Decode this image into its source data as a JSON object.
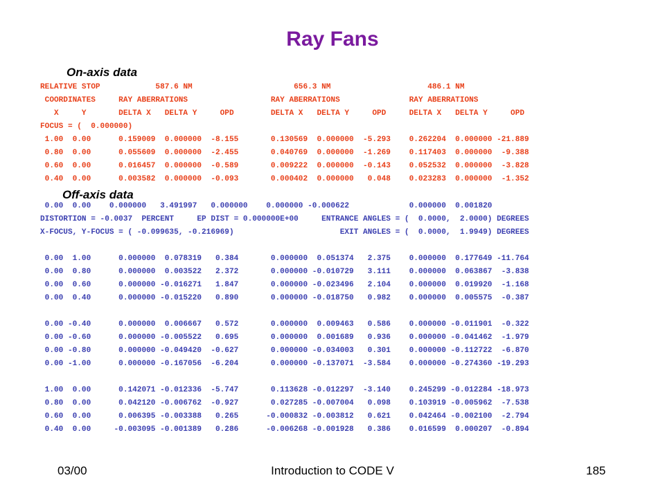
{
  "slide": {
    "title": "Ray Fans",
    "onaxis_heading": "On-axis data",
    "offaxis_heading": "Off-axis data",
    "onaxis_text": "RELATIVE STOP            587.6 NM                      656.3 NM                     486.1 NM\n COORDINATES     RAY ABERRATIONS                  RAY ABERRATIONS               RAY ABERRATIONS\n   X     Y       DELTA X   DELTA Y     OPD        DELTA X   DELTA Y     OPD     DELTA X   DELTA Y     OPD\nFOCUS = (  0.000000)\n 1.00  0.00      0.159009  0.000000  -8.155       0.130569  0.000000  -5.293    0.262204  0.000000 -21.889\n 0.80  0.00      0.055609  0.000000  -2.455       0.040769  0.000000  -1.269    0.117403  0.000000  -9.388\n 0.60  0.00      0.016457  0.000000  -0.589       0.009222  0.000000  -0.143    0.052532  0.000000  -3.828\n 0.40  0.00      0.003582  0.000000  -0.093       0.000402  0.000000   0.048    0.023283  0.000000  -1.352",
    "offaxis_text": " 0.00  0.00    0.000000   3.491997   0.000000    0.000000 -0.000622             0.000000  0.001820\nDISTORTION = -0.0037  PERCENT     EP DIST = 0.000000E+00     ENTRANCE ANGLES = (  0.0000,  2.0000) DEGREES\nX-FOCUS, Y-FOCUS = ( -0.099635, -0.216969)                       EXIT ANGLES = (  0.0000,  1.9949) DEGREES\n\n 0.00  1.00      0.000000  0.078319   0.384       0.000000  0.051374   2.375    0.000000  0.177649 -11.764\n 0.00  0.80      0.000000  0.003522   2.372       0.000000 -0.010729   3.111    0.000000  0.063867  -3.838\n 0.00  0.60      0.000000 -0.016271   1.847       0.000000 -0.023496   2.104    0.000000  0.019920  -1.168\n 0.00  0.40      0.000000 -0.015220   0.890       0.000000 -0.018750   0.982    0.000000  0.005575  -0.387\n\n 0.00 -0.40      0.000000  0.006667   0.572       0.000000  0.009463   0.586    0.000000 -0.011901  -0.322\n 0.00 -0.60      0.000000 -0.005522   0.695       0.000000  0.001689   0.936    0.000000 -0.041462  -1.979\n 0.00 -0.80      0.000000 -0.049420  -0.627       0.000000 -0.034003   0.301    0.000000 -0.112722  -6.870\n 0.00 -1.00      0.000000 -0.167056  -6.204       0.000000 -0.137071  -3.584    0.000000 -0.274360 -19.293\n\n 1.00  0.00      0.142071 -0.012336  -5.747       0.113628 -0.012297  -3.140    0.245299 -0.012284 -18.973\n 0.80  0.00      0.042120 -0.006762  -0.927       0.027285 -0.007004   0.098    0.103919 -0.005962  -7.538\n 0.60  0.00      0.006395 -0.003388   0.265      -0.000832 -0.003812   0.621    0.042464 -0.002100  -2.794\n 0.40  0.00     -0.003095 -0.001389   0.286      -0.006268 -0.001928   0.386    0.016599  0.000207  -0.894"
  },
  "footer": {
    "date": "03/00",
    "center": "Introduction to CODE V",
    "page": "185"
  },
  "colors": {
    "title": "#7a1a9e",
    "onaxis_text": "#e8401a",
    "offaxis_text": "#3b3fb0"
  }
}
